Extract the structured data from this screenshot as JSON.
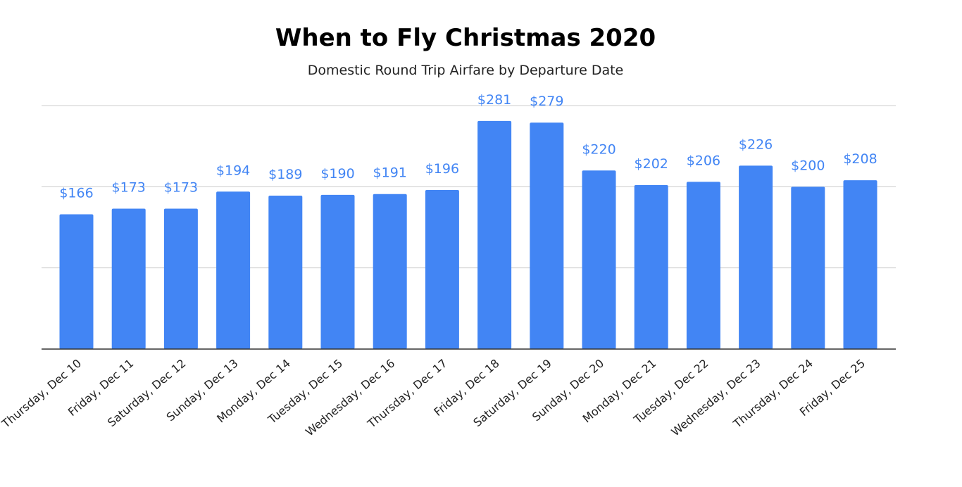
{
  "title": "When to Fly Christmas 2020",
  "subtitle": "Domestic Round Trip Airfare by Departure Date",
  "chart_data": {
    "type": "bar",
    "title": "When to Fly Christmas 2020",
    "subtitle": "Domestic Round Trip Airfare by Departure Date",
    "xlabel": "",
    "ylabel": "",
    "categories": [
      "Thursday, Dec 10",
      "Friday, Dec 11",
      "Saturday, Dec 12",
      "Sunday, Dec 13",
      "Monday, Dec 14",
      "Tuesday, Dec 15",
      "Wednesday, Dec 16",
      "Thursday, Dec 17",
      "Friday, Dec 18",
      "Saturday, Dec 19",
      "Sunday, Dec 20",
      "Monday, Dec 21",
      "Tuesday, Dec 22",
      "Wednesday, Dec 23",
      "Thursday, Dec 24",
      "Friday, Dec 25"
    ],
    "values": [
      166,
      173,
      173,
      194,
      189,
      190,
      191,
      196,
      281,
      279,
      220,
      202,
      206,
      226,
      200,
      208
    ],
    "value_labels": [
      "$166",
      "$173",
      "$173",
      "$194",
      "$189",
      "$190",
      "$191",
      "$196",
      "$281",
      "$279",
      "$220",
      "$202",
      "$206",
      "$226",
      "$200",
      "$208"
    ],
    "ylim": [
      0,
      300
    ],
    "gridlines": [
      100,
      200,
      300
    ],
    "grid": true,
    "legend": "none",
    "bar_color": "#4285f4",
    "label_color": "#4285f4"
  }
}
